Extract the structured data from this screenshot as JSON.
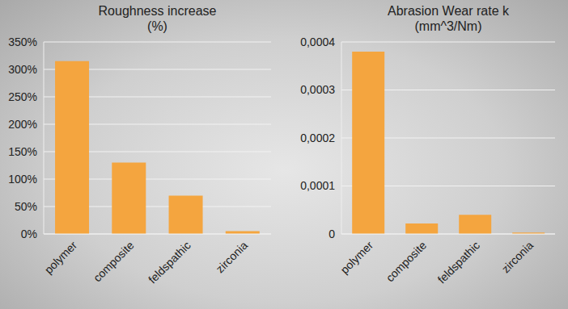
{
  "chart_data": [
    {
      "type": "bar",
      "title": "Roughness increase (%)",
      "categories": [
        "polymer",
        "composite",
        "feldspathic",
        "zirconia"
      ],
      "values": [
        315,
        130,
        70,
        5
      ],
      "color": "#f4a53f",
      "ylim": [
        0,
        350
      ],
      "yticks": [
        {
          "value": 0,
          "label": "0%"
        },
        {
          "value": 50,
          "label": "50%"
        },
        {
          "value": 100,
          "label": "100%"
        },
        {
          "value": 150,
          "label": "150%"
        },
        {
          "value": 200,
          "label": "200%"
        },
        {
          "value": 250,
          "label": "250%"
        },
        {
          "value": 300,
          "label": "300%"
        },
        {
          "value": 350,
          "label": "350%"
        }
      ],
      "grid": true
    },
    {
      "type": "bar",
      "title": "Abrasion Wear rate k (mm^3/Nm)",
      "categories": [
        "polymer",
        "composite",
        "feldspathic",
        "zirconia"
      ],
      "values": [
        0.00038,
        2.2e-05,
        4e-05,
        3e-06
      ],
      "color": "#f4a53f",
      "ylim": [
        0,
        0.0004
      ],
      "yticks": [
        0,
        {
          "value": 0.0001,
          "label": "0,0001"
        },
        {
          "value": 0.0002,
          "label": "0,0002"
        },
        {
          "value": 0.0003,
          "label": "0,0003"
        },
        {
          "value": 0.0004,
          "label": "0,0004"
        }
      ],
      "grid": true
    }
  ]
}
